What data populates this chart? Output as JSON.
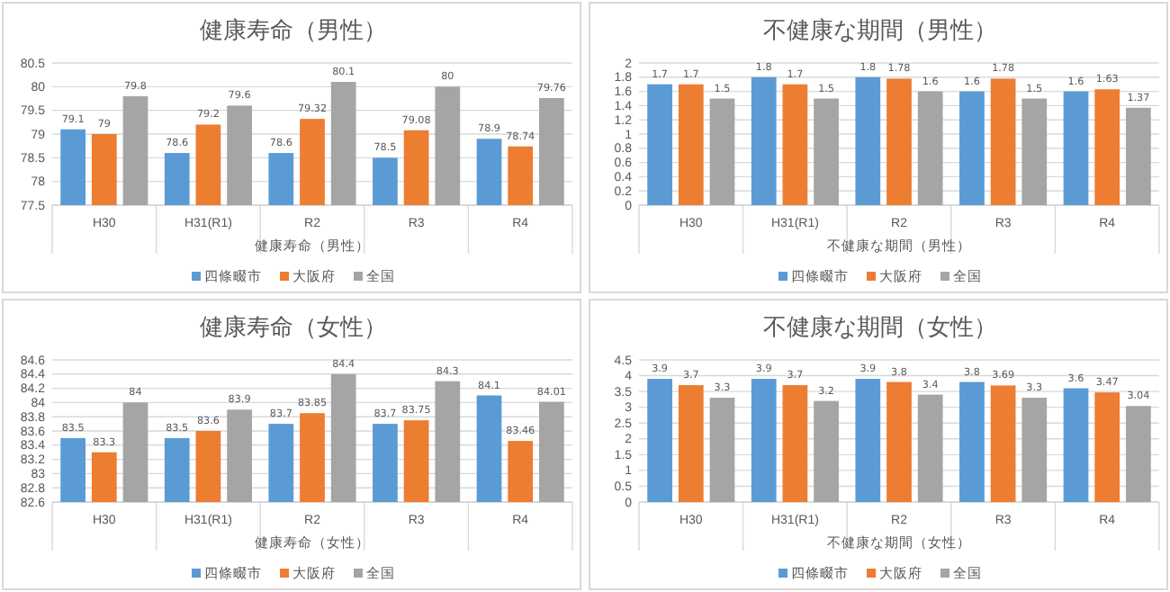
{
  "chart_data": [
    {
      "type": "bar",
      "title": "健康寿命（男性）",
      "xlabel": "健康寿命（男性）",
      "categories": [
        "H30",
        "H31(R1)",
        "R2",
        "R3",
        "R4"
      ],
      "series": [
        {
          "name": "四條畷市",
          "color": "#5b9bd5",
          "values": [
            79.1,
            78.6,
            78.6,
            78.5,
            78.9
          ]
        },
        {
          "name": "大阪府",
          "color": "#ed7d31",
          "values": [
            79,
            79.2,
            79.32,
            79.08,
            78.74
          ]
        },
        {
          "name": "全国",
          "color": "#a5a5a5",
          "values": [
            79.8,
            79.6,
            80.1,
            80,
            79.76
          ]
        }
      ],
      "ylim": [
        77.5,
        80.5
      ],
      "yticks": [
        77.5,
        78,
        78.5,
        79,
        79.5,
        80,
        80.5
      ],
      "grid": "y",
      "legend": "bottom",
      "data_labels": true
    },
    {
      "type": "bar",
      "title": "不健康な期間（男性）",
      "xlabel": "不健康な期間（男性）",
      "categories": [
        "H30",
        "H31(R1)",
        "R2",
        "R3",
        "R4"
      ],
      "series": [
        {
          "name": "四條畷市",
          "color": "#5b9bd5",
          "values": [
            1.7,
            1.8,
            1.8,
            1.6,
            1.6
          ]
        },
        {
          "name": "大阪府",
          "color": "#ed7d31",
          "values": [
            1.7,
            1.7,
            1.78,
            1.78,
            1.63
          ]
        },
        {
          "name": "全国",
          "color": "#a5a5a5",
          "values": [
            1.5,
            1.5,
            1.6,
            1.5,
            1.37
          ]
        }
      ],
      "ylim": [
        0,
        2
      ],
      "yticks": [
        0,
        0.2,
        0.4,
        0.6,
        0.8,
        1,
        1.2,
        1.4,
        1.6,
        1.8,
        2
      ],
      "grid": "y",
      "legend": "bottom",
      "data_labels": true
    },
    {
      "type": "bar",
      "title": "健康寿命（女性）",
      "xlabel": "健康寿命（女性）",
      "categories": [
        "H30",
        "H31(R1)",
        "R2",
        "R3",
        "R4"
      ],
      "series": [
        {
          "name": "四條畷市",
          "color": "#5b9bd5",
          "values": [
            83.5,
            83.5,
            83.7,
            83.7,
            84.1
          ]
        },
        {
          "name": "大阪府",
          "color": "#ed7d31",
          "values": [
            83.3,
            83.6,
            83.85,
            83.75,
            83.46
          ]
        },
        {
          "name": "全国",
          "color": "#a5a5a5",
          "values": [
            84,
            83.9,
            84.4,
            84.3,
            84.01
          ]
        }
      ],
      "ylim": [
        82.6,
        84.6
      ],
      "yticks": [
        82.6,
        82.8,
        83,
        83.2,
        83.4,
        83.6,
        83.8,
        84,
        84.2,
        84.4,
        84.6
      ],
      "grid": "y",
      "legend": "bottom",
      "data_labels": true
    },
    {
      "type": "bar",
      "title": "不健康な期間（女性）",
      "xlabel": "不健康な期間（女性）",
      "categories": [
        "H30",
        "H31(R1)",
        "R2",
        "R3",
        "R4"
      ],
      "series": [
        {
          "name": "四條畷市",
          "color": "#5b9bd5",
          "values": [
            3.9,
            3.9,
            3.9,
            3.8,
            3.6
          ]
        },
        {
          "name": "大阪府",
          "color": "#ed7d31",
          "values": [
            3.7,
            3.7,
            3.8,
            3.69,
            3.47
          ]
        },
        {
          "name": "全国",
          "color": "#a5a5a5",
          "values": [
            3.3,
            3.2,
            3.4,
            3.3,
            3.04
          ]
        }
      ],
      "ylim": [
        0,
        4.5
      ],
      "yticks": [
        0,
        0.5,
        1,
        1.5,
        2,
        2.5,
        3,
        3.5,
        4,
        4.5
      ],
      "grid": "y",
      "legend": "bottom",
      "data_labels": true
    }
  ]
}
